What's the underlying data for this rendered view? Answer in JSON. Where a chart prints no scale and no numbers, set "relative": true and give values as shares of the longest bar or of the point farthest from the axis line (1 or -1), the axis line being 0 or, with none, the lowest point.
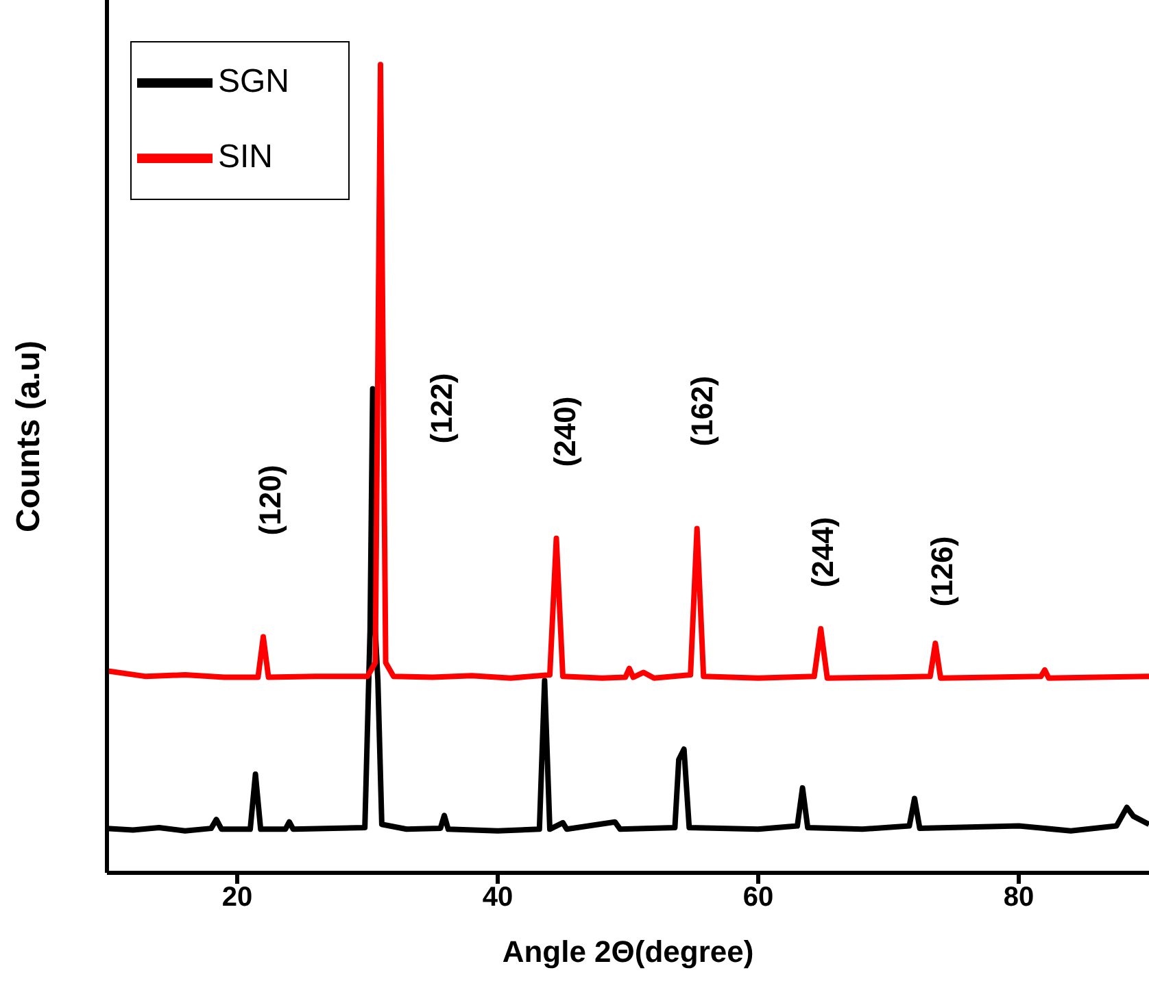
{
  "chart_data": {
    "type": "line",
    "relative": true,
    "xlabel": "Angle 2Θ(degree)",
    "ylabel": "Counts (a.u)",
    "xlim": [
      10,
      90
    ],
    "xticks": [
      20,
      40,
      60,
      80
    ],
    "tick_labels": "x",
    "grid": false,
    "legend": "top left",
    "marker": "none",
    "line_style": "solid",
    "annotations": [
      "(120)",
      "(122)",
      "(240)",
      "(162)",
      "(244)",
      "(126)"
    ],
    "series": [
      {
        "name": "SGN",
        "color": "#000000",
        "x": [
          10,
          12,
          14,
          16,
          18,
          18.4,
          18.8,
          21,
          21.4,
          21.8,
          23.7,
          24,
          24.3,
          29.8,
          30.2,
          30.4,
          30.6,
          30.8,
          31.1,
          33,
          35.6,
          35.9,
          36.2,
          40,
          43.2,
          43.6,
          44,
          45,
          45.3,
          49,
          49.4,
          53.6,
          53.9,
          54.3,
          54.7,
          60,
          63,
          63.4,
          63.8,
          68,
          71.6,
          72,
          72.4,
          80,
          84,
          87.5,
          88.3,
          88.8,
          90
        ],
        "values": [
          0.055,
          0.053,
          0.056,
          0.052,
          0.055,
          0.066,
          0.054,
          0.054,
          0.122,
          0.054,
          0.054,
          0.063,
          0.054,
          0.056,
          0.3,
          0.599,
          0.3,
          0.238,
          0.06,
          0.054,
          0.055,
          0.071,
          0.054,
          0.052,
          0.054,
          0.238,
          0.054,
          0.062,
          0.054,
          0.063,
          0.054,
          0.056,
          0.14,
          0.153,
          0.056,
          0.054,
          0.058,
          0.105,
          0.056,
          0.054,
          0.058,
          0.092,
          0.055,
          0.058,
          0.052,
          0.058,
          0.081,
          0.07,
          0.06
        ]
      },
      {
        "name": "SIN",
        "color": "#ff0000",
        "x": [
          10,
          13,
          16,
          19,
          21.6,
          22,
          22.4,
          26,
          30,
          30.6,
          31,
          31.4,
          32,
          35,
          38,
          41,
          44,
          44.5,
          45,
          48,
          49.8,
          50.1,
          50.4,
          51.2,
          52,
          54.8,
          55.3,
          55.8,
          60,
          64.3,
          64.8,
          65.3,
          70,
          73.2,
          73.6,
          74,
          78,
          81.7,
          82,
          82.3,
          86,
          90
        ],
        "values": [
          0.25,
          0.243,
          0.245,
          0.242,
          0.242,
          0.292,
          0.242,
          0.243,
          0.243,
          0.26,
          1.0,
          0.26,
          0.243,
          0.242,
          0.244,
          0.241,
          0.245,
          0.414,
          0.243,
          0.241,
          0.242,
          0.253,
          0.242,
          0.248,
          0.241,
          0.245,
          0.426,
          0.243,
          0.241,
          0.243,
          0.302,
          0.241,
          0.242,
          0.243,
          0.284,
          0.241,
          0.242,
          0.243,
          0.251,
          0.241,
          0.242,
          0.243
        ]
      }
    ]
  }
}
